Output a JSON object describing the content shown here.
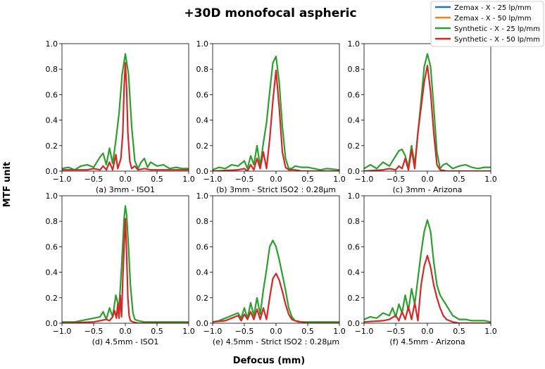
{
  "figure": {
    "title": "+30D monofocal aspheric",
    "xlabel": "Defocus (mm)",
    "ylabel": "MTF unit"
  },
  "legend": {
    "entries": [
      {
        "label": "Zemax - X - 25 lp/mm",
        "color": "#1f77b4"
      },
      {
        "label": "Zemax - X - 50 lp/mm",
        "color": "#ff7f0e"
      },
      {
        "label": "Synthetic - X - 25 lp/mm",
        "color": "#2ca02c"
      },
      {
        "label": "Synthetic - X - 50 lp/mm",
        "color": "#d62728"
      }
    ],
    "placement": "top-right"
  },
  "chart_data": [
    {
      "type": "line",
      "caption": "(a) 3mm - ISO1",
      "xlim": [
        -1.0,
        1.0
      ],
      "ylim": [
        0.0,
        1.0
      ],
      "xticks": [
        "−1.0",
        "−0.5",
        "0.0",
        "0.5",
        "1.0"
      ],
      "yticks": [
        "0.0",
        "0.2",
        "0.4",
        "0.6",
        "0.8",
        "1.0"
      ],
      "series": [
        {
          "name": "Synthetic - X - 25 lp/mm",
          "color": "#2ca02c",
          "x": [
            -1.0,
            -0.9,
            -0.8,
            -0.7,
            -0.6,
            -0.5,
            -0.4,
            -0.35,
            -0.3,
            -0.25,
            -0.2,
            -0.15,
            -0.1,
            -0.05,
            0.0,
            0.05,
            0.1,
            0.15,
            0.2,
            0.25,
            0.3,
            0.35,
            0.4,
            0.5,
            0.6,
            0.7,
            0.8,
            0.9,
            1.0
          ],
          "y": [
            0.02,
            0.03,
            0.01,
            0.04,
            0.05,
            0.03,
            0.11,
            0.14,
            0.05,
            0.18,
            0.06,
            0.24,
            0.45,
            0.76,
            0.92,
            0.76,
            0.35,
            0.08,
            0.02,
            0.07,
            0.1,
            0.03,
            0.07,
            0.04,
            0.05,
            0.02,
            0.03,
            0.02,
            0.02
          ]
        },
        {
          "name": "Synthetic - X - 50 lp/mm",
          "color": "#d62728",
          "x": [
            -1.0,
            -0.6,
            -0.5,
            -0.4,
            -0.35,
            -0.3,
            -0.25,
            -0.2,
            -0.15,
            -0.12,
            -0.1,
            -0.07,
            -0.04,
            -0.02,
            0.0,
            0.02,
            0.04,
            0.07,
            0.1,
            0.15,
            0.2,
            0.3,
            0.4,
            0.5,
            0.7,
            1.0
          ],
          "y": [
            0.01,
            0.01,
            0.02,
            0.01,
            0.04,
            0.01,
            0.07,
            0.01,
            0.13,
            0.02,
            0.05,
            0.1,
            0.3,
            0.65,
            0.85,
            0.65,
            0.3,
            0.08,
            0.02,
            0.04,
            0.01,
            0.02,
            0.01,
            0.01,
            0.01,
            0.01
          ]
        }
      ]
    },
    {
      "type": "line",
      "caption": "(b) 3mm - Strict ISO2 : 0.28µm",
      "xlim": [
        -1.0,
        1.0
      ],
      "ylim": [
        0.0,
        1.0
      ],
      "xticks": [
        "−1.0",
        "−0.5",
        "0.0",
        "0.5",
        "1.0"
      ],
      "yticks": [
        "0.0",
        "0.2",
        "0.4",
        "0.6",
        "0.8",
        "1.0"
      ],
      "series": [
        {
          "name": "Synthetic - X - 25 lp/mm",
          "color": "#2ca02c",
          "x": [
            -1.0,
            -0.9,
            -0.8,
            -0.7,
            -0.6,
            -0.5,
            -0.45,
            -0.4,
            -0.35,
            -0.3,
            -0.25,
            -0.2,
            -0.15,
            -0.1,
            -0.05,
            0.0,
            0.05,
            0.1,
            0.15,
            0.2,
            0.25,
            0.3,
            0.4,
            0.5,
            0.6,
            0.7,
            0.8,
            1.0
          ],
          "y": [
            0.01,
            0.03,
            0.02,
            0.05,
            0.04,
            0.08,
            0.02,
            0.12,
            0.05,
            0.2,
            0.04,
            0.22,
            0.38,
            0.62,
            0.85,
            0.9,
            0.7,
            0.35,
            0.1,
            0.02,
            0.02,
            0.04,
            0.03,
            0.03,
            0.02,
            0.01,
            0.02,
            0.01
          ]
        },
        {
          "name": "Synthetic - X - 50 lp/mm",
          "color": "#d62728",
          "x": [
            -1.0,
            -0.6,
            -0.5,
            -0.45,
            -0.4,
            -0.35,
            -0.3,
            -0.25,
            -0.2,
            -0.15,
            -0.1,
            -0.05,
            0.0,
            0.05,
            0.1,
            0.15,
            0.2,
            0.3,
            0.4,
            0.6,
            1.0
          ],
          "y": [
            0.0,
            0.01,
            0.02,
            0.0,
            0.05,
            0.01,
            0.1,
            0.02,
            0.15,
            0.02,
            0.25,
            0.55,
            0.79,
            0.5,
            0.15,
            0.03,
            0.01,
            0.01,
            0.0,
            0.0,
            0.0
          ]
        }
      ]
    },
    {
      "type": "line",
      "caption": "(c) 3mm - Arizona",
      "xlim": [
        -1.0,
        1.0
      ],
      "ylim": [
        0.0,
        1.0
      ],
      "xticks": [
        "−1.0",
        "−0.5",
        "0.0",
        "0.5",
        "1.0"
      ],
      "yticks": [
        "0.0",
        "0.2",
        "0.4",
        "0.6",
        "0.8",
        "1.0"
      ],
      "series": [
        {
          "name": "Synthetic - X - 25 lp/mm",
          "color": "#2ca02c",
          "x": [
            -1.0,
            -0.9,
            -0.8,
            -0.7,
            -0.6,
            -0.5,
            -0.45,
            -0.4,
            -0.35,
            -0.3,
            -0.25,
            -0.2,
            -0.15,
            -0.1,
            -0.05,
            0.0,
            0.05,
            0.1,
            0.15,
            0.2,
            0.25,
            0.3,
            0.4,
            0.5,
            0.6,
            0.7,
            0.8,
            0.9,
            1.0
          ],
          "y": [
            0.02,
            0.05,
            0.02,
            0.07,
            0.04,
            0.12,
            0.16,
            0.17,
            0.12,
            0.03,
            0.2,
            0.05,
            0.3,
            0.55,
            0.82,
            0.92,
            0.82,
            0.5,
            0.15,
            0.02,
            0.05,
            0.06,
            0.02,
            0.04,
            0.05,
            0.03,
            0.02,
            0.03,
            0.03
          ]
        },
        {
          "name": "Synthetic - X - 50 lp/mm",
          "color": "#d62728",
          "x": [
            -1.0,
            -0.7,
            -0.6,
            -0.5,
            -0.45,
            -0.4,
            -0.35,
            -0.3,
            -0.25,
            -0.2,
            -0.15,
            -0.1,
            -0.05,
            0.0,
            0.05,
            0.1,
            0.15,
            0.2,
            0.3,
            0.5,
            1.0
          ],
          "y": [
            0.0,
            0.01,
            0.02,
            0.01,
            0.04,
            0.02,
            0.1,
            0.01,
            0.17,
            0.02,
            0.3,
            0.5,
            0.7,
            0.83,
            0.62,
            0.3,
            0.05,
            0.01,
            0.0,
            0.0,
            0.0
          ]
        }
      ]
    },
    {
      "type": "line",
      "caption": "(d) 4.5mm - ISO1",
      "xlim": [
        -1.0,
        1.0
      ],
      "ylim": [
        0.0,
        1.0
      ],
      "xticks": [
        "−1.0",
        "−0.5",
        "0.0",
        "0.5",
        "1.0"
      ],
      "yticks": [
        "0.0",
        "0.2",
        "0.4",
        "0.6",
        "0.8",
        "1.0"
      ],
      "series": [
        {
          "name": "Synthetic - X - 25 lp/mm",
          "color": "#2ca02c",
          "x": [
            -1.0,
            -0.8,
            -0.7,
            -0.6,
            -0.5,
            -0.4,
            -0.35,
            -0.3,
            -0.25,
            -0.2,
            -0.15,
            -0.1,
            -0.07,
            -0.04,
            -0.02,
            0.0,
            0.02,
            0.05,
            0.08,
            0.12,
            0.15,
            0.2,
            0.3,
            0.5,
            0.7,
            1.0
          ],
          "y": [
            0.01,
            0.01,
            0.02,
            0.03,
            0.04,
            0.05,
            0.09,
            0.03,
            0.12,
            0.05,
            0.22,
            0.12,
            0.35,
            0.62,
            0.82,
            0.92,
            0.85,
            0.6,
            0.3,
            0.08,
            0.03,
            0.02,
            0.01,
            0.01,
            0.01,
            0.01
          ]
        },
        {
          "name": "Synthetic - X - 50 lp/mm",
          "color": "#d62728",
          "x": [
            -1.0,
            -0.5,
            -0.4,
            -0.3,
            -0.25,
            -0.2,
            -0.17,
            -0.14,
            -0.12,
            -0.1,
            -0.08,
            -0.06,
            -0.04,
            -0.02,
            0.0,
            0.02,
            0.04,
            0.06,
            0.08,
            0.12,
            0.2,
            0.5,
            1.0
          ],
          "y": [
            0.0,
            0.01,
            0.02,
            0.03,
            0.02,
            0.05,
            0.1,
            0.04,
            0.15,
            0.04,
            0.22,
            0.05,
            0.35,
            0.6,
            0.82,
            0.55,
            0.2,
            0.06,
            0.02,
            0.01,
            0.0,
            0.0,
            0.0
          ]
        }
      ]
    },
    {
      "type": "line",
      "caption": "(e) 4.5mm - Strict ISO2 : 0.28µm",
      "xlim": [
        -1.0,
        1.0
      ],
      "ylim": [
        0.0,
        1.0
      ],
      "xticks": [
        "−1.0",
        "−0.5",
        "0.0",
        "0.5",
        "1.0"
      ],
      "yticks": [
        "0.0",
        "0.2",
        "0.4",
        "0.6",
        "0.8",
        "1.0"
      ],
      "series": [
        {
          "name": "Synthetic - X - 25 lp/mm",
          "color": "#2ca02c",
          "x": [
            -1.0,
            -0.9,
            -0.8,
            -0.7,
            -0.6,
            -0.55,
            -0.5,
            -0.45,
            -0.4,
            -0.35,
            -0.3,
            -0.25,
            -0.2,
            -0.15,
            -0.1,
            -0.05,
            0.0,
            0.05,
            0.1,
            0.15,
            0.2,
            0.25,
            0.3,
            0.35,
            0.4,
            0.5,
            0.7,
            1.0
          ],
          "y": [
            0.01,
            0.02,
            0.04,
            0.06,
            0.08,
            0.04,
            0.12,
            0.04,
            0.16,
            0.06,
            0.2,
            0.07,
            0.26,
            0.42,
            0.6,
            0.65,
            0.6,
            0.5,
            0.38,
            0.26,
            0.12,
            0.05,
            0.02,
            0.01,
            0.01,
            0.01,
            0.01,
            0.01
          ]
        },
        {
          "name": "Synthetic - X - 50 lp/mm",
          "color": "#d62728",
          "x": [
            -1.0,
            -0.8,
            -0.7,
            -0.6,
            -0.55,
            -0.5,
            -0.45,
            -0.4,
            -0.35,
            -0.3,
            -0.25,
            -0.2,
            -0.15,
            -0.1,
            -0.05,
            0.0,
            0.05,
            0.1,
            0.15,
            0.2,
            0.25,
            0.3,
            0.4,
            0.5,
            1.0
          ],
          "y": [
            0.01,
            0.02,
            0.04,
            0.06,
            0.02,
            0.07,
            0.03,
            0.09,
            0.03,
            0.11,
            0.03,
            0.12,
            0.03,
            0.2,
            0.35,
            0.39,
            0.34,
            0.25,
            0.15,
            0.07,
            0.03,
            0.02,
            0.01,
            0.0,
            0.0
          ]
        }
      ]
    },
    {
      "type": "line",
      "caption": "(f) 4.5mm - Arizona",
      "xlim": [
        -1.0,
        1.0
      ],
      "ylim": [
        0.0,
        1.0
      ],
      "xticks": [
        "−1.0",
        "−0.5",
        "0.0",
        "0.5",
        "1.0"
      ],
      "yticks": [
        "0.0",
        "0.2",
        "0.4",
        "0.6",
        "0.8",
        "1.0"
      ],
      "series": [
        {
          "name": "Synthetic - X - 25 lp/mm",
          "color": "#2ca02c",
          "x": [
            -1.0,
            -0.9,
            -0.8,
            -0.7,
            -0.6,
            -0.55,
            -0.5,
            -0.45,
            -0.4,
            -0.35,
            -0.3,
            -0.25,
            -0.2,
            -0.15,
            -0.1,
            -0.05,
            0.0,
            0.05,
            0.1,
            0.15,
            0.2,
            0.3,
            0.4,
            0.5,
            0.6,
            0.7,
            0.8,
            0.9,
            1.0
          ],
          "y": [
            0.03,
            0.05,
            0.04,
            0.08,
            0.06,
            0.12,
            0.05,
            0.15,
            0.08,
            0.22,
            0.1,
            0.27,
            0.15,
            0.35,
            0.55,
            0.72,
            0.81,
            0.72,
            0.48,
            0.3,
            0.22,
            0.14,
            0.06,
            0.03,
            0.03,
            0.02,
            0.02,
            0.02,
            0.01
          ]
        },
        {
          "name": "Synthetic - X - 50 lp/mm",
          "color": "#d62728",
          "x": [
            -1.0,
            -0.7,
            -0.6,
            -0.5,
            -0.45,
            -0.4,
            -0.35,
            -0.3,
            -0.25,
            -0.2,
            -0.15,
            -0.1,
            -0.05,
            0.0,
            0.05,
            0.1,
            0.15,
            0.2,
            0.25,
            0.3,
            0.4,
            0.5,
            1.0
          ],
          "y": [
            0.01,
            0.02,
            0.03,
            0.06,
            0.02,
            0.09,
            0.03,
            0.13,
            0.03,
            0.16,
            0.02,
            0.3,
            0.45,
            0.53,
            0.44,
            0.3,
            0.2,
            0.12,
            0.06,
            0.03,
            0.01,
            0.0,
            0.0
          ]
        }
      ]
    }
  ]
}
